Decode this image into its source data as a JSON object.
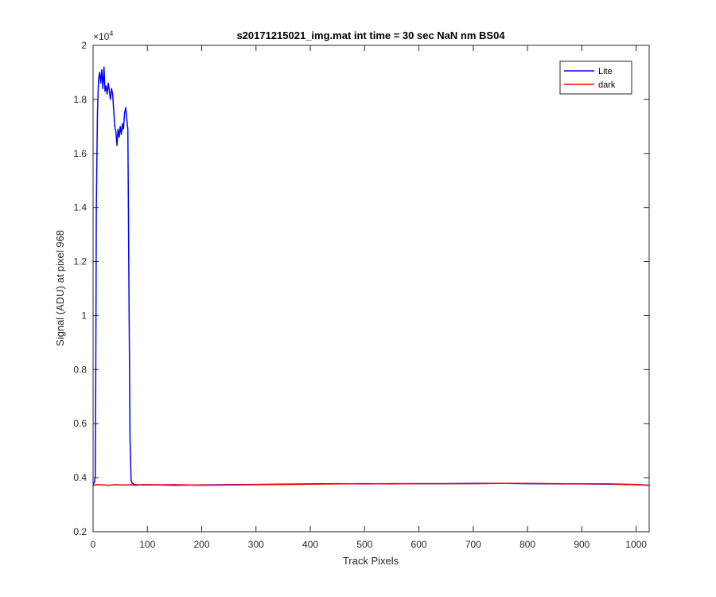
{
  "chart_data": {
    "type": "line",
    "title": "s20171215021_img.mat int time = 30 sec  NaN nm BS04",
    "xlabel": "Track Pixels",
    "ylabel": "Signal (ADU) at pixel 968",
    "xlim": [
      0,
      1024
    ],
    "ylim": [
      2000,
      20000
    ],
    "xticks": [
      0,
      100,
      200,
      300,
      400,
      500,
      600,
      700,
      800,
      900,
      1000
    ],
    "xtick_labels": [
      "0",
      "100",
      "200",
      "300",
      "400",
      "500",
      "600",
      "700",
      "800",
      "900",
      "1000"
    ],
    "yticks": [
      2000,
      4000,
      6000,
      8000,
      10000,
      12000,
      14000,
      16000,
      18000,
      20000
    ],
    "ytick_labels": [
      "0.2",
      "0.4",
      "0.6",
      "0.8",
      "1",
      "1.2",
      "1.4",
      "1.6",
      "1.8",
      "2"
    ],
    "y_exponent_label": "×10",
    "y_exponent_power": "4",
    "grid": false,
    "legend_position": "top-right",
    "series": [
      {
        "name": "Lite",
        "color": "#0000ff",
        "x": [
          0,
          2,
          3,
          4,
          5,
          6,
          8,
          10,
          12,
          14,
          16,
          18,
          20,
          22,
          24,
          26,
          28,
          30,
          32,
          34,
          36,
          38,
          40,
          42,
          44,
          46,
          48,
          50,
          52,
          54,
          56,
          58,
          60,
          62,
          64,
          66,
          68,
          70,
          72,
          74,
          75,
          76,
          77,
          78,
          79,
          80,
          85,
          100,
          150,
          200,
          250,
          300,
          350,
          400,
          450,
          500,
          550,
          600,
          650,
          700,
          750,
          800,
          850,
          900,
          950,
          1000,
          1024
        ],
        "y": [
          3750,
          3800,
          3900,
          4000,
          8000,
          14000,
          17500,
          18700,
          19000,
          18600,
          19100,
          18400,
          19200,
          18300,
          18500,
          18200,
          18600,
          18300,
          18000,
          18400,
          18200,
          17600,
          17000,
          16800,
          16300,
          16900,
          16600,
          17000,
          16700,
          17100,
          16900,
          17500,
          17700,
          17300,
          16900,
          11000,
          5500,
          3900,
          3800,
          3780,
          3760,
          3720,
          3740,
          3750,
          3720,
          3740,
          3730,
          3740,
          3720,
          3730,
          3740,
          3750,
          3760,
          3770,
          3780,
          3770,
          3780,
          3780,
          3780,
          3790,
          3790,
          3780,
          3770,
          3770,
          3760,
          3740,
          3720
        ]
      },
      {
        "name": "dark",
        "color": "#ff0000",
        "x": [
          0,
          10,
          20,
          30,
          40,
          50,
          60,
          70,
          80,
          90,
          100,
          150,
          200,
          250,
          300,
          350,
          400,
          450,
          500,
          550,
          600,
          650,
          700,
          750,
          800,
          850,
          900,
          950,
          1000,
          1024
        ],
        "y": [
          3720,
          3740,
          3730,
          3720,
          3740,
          3730,
          3730,
          3740,
          3720,
          3740,
          3730,
          3740,
          3720,
          3730,
          3740,
          3750,
          3760,
          3770,
          3780,
          3770,
          3780,
          3780,
          3780,
          3790,
          3790,
          3780,
          3770,
          3770,
          3750,
          3720
        ]
      }
    ]
  }
}
